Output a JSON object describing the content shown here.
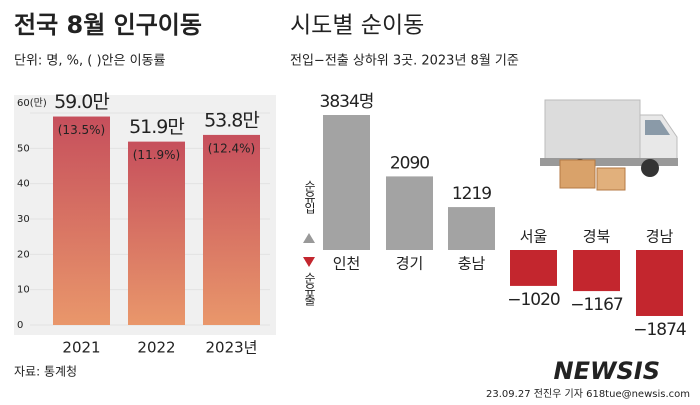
{
  "header": {
    "title": "전국 8월 인구이동",
    "unit_note": "단위: 명, %, ( )안은 이동률"
  },
  "chart_data": [
    {
      "type": "bar",
      "categories": [
        "2021",
        "2022",
        "2023년"
      ],
      "values": [
        59.0,
        51.9,
        53.8
      ],
      "value_labels": [
        "59.0만",
        "51.9만",
        "53.8만"
      ],
      "rates": [
        13.5,
        11.9,
        12.4
      ],
      "rate_labels": [
        "(13.5%)",
        "(11.9%)",
        "(12.4%)"
      ],
      "ylim": [
        0,
        60
      ],
      "yticks": [
        0,
        10,
        20,
        30,
        40,
        50,
        {
          "value": 60,
          "label": "60(만)"
        }
      ],
      "grid": true,
      "color_top": "#c64f5c",
      "color_bottom": "#e9976b"
    },
    {
      "type": "bar",
      "title": "시도별 순이동",
      "subtitle": "전입−전출 상하위 3곳. 2023년 8월 기준",
      "categories": [
        "인천",
        "경기",
        "충남",
        "서울",
        "경북",
        "경남"
      ],
      "values": [
        3834,
        2090,
        1219,
        -1020,
        -1167,
        -1874
      ],
      "value_labels": [
        "3834명",
        "2090",
        "1219",
        "−1020",
        "−1167",
        "−1874"
      ],
      "color_positive": "#a3a3a3",
      "color_negative": "#c3262e",
      "annotations": [
        "순유입",
        "순유출"
      ]
    }
  ],
  "source": "자료: 통계청",
  "footer": "23.09.27 전진우 기자 618tue@newsis.com",
  "watermark": "NEWSIS"
}
